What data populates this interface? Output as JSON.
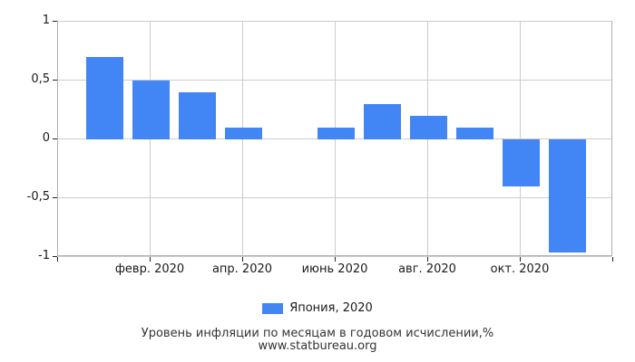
{
  "chart_data": {
    "type": "bar",
    "title": "Уровень инфляции по месяцам в годовом исчислении,%",
    "source": "www.statbureau.org",
    "legend_label": "Япония, 2020",
    "legend_position": "bottom",
    "bar_color": "#4285F4",
    "grid": true,
    "ylim": [
      -1,
      1
    ],
    "y_ticks": [
      {
        "label": "1",
        "value": 1
      },
      {
        "label": "0,5",
        "value": 0.5
      },
      {
        "label": "0",
        "value": 0
      },
      {
        "label": "-0,5",
        "value": -0.5
      },
      {
        "label": "-1",
        "value": -1
      }
    ],
    "n_slots": 12,
    "x_ticks": [
      {
        "label": "февр. 2020",
        "slot": 1
      },
      {
        "label": "апр. 2020",
        "slot": 3
      },
      {
        "label": "июнь 2020",
        "slot": 5
      },
      {
        "label": "авг. 2020",
        "slot": 7
      },
      {
        "label": "окт. 2020",
        "slot": 9
      }
    ],
    "values": [
      0.7,
      0.5,
      0.4,
      0.1,
      0,
      0.1,
      0.3,
      0.2,
      0.1,
      -0.4,
      -0.96
    ]
  },
  "colors": {
    "grid": "#cccccc",
    "plot_border": "#b0b0b0",
    "tick": "#222222",
    "text": "#1a1a1a"
  }
}
